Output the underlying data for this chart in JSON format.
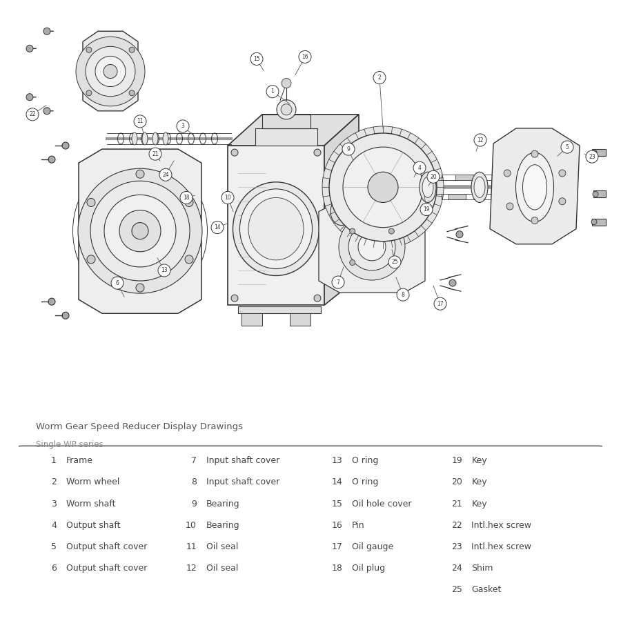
{
  "title": "Worm Gear Speed Reducer Display Drawings",
  "subtitle": "Single WP series",
  "bg_color": "#ffffff",
  "table_border_color": "#888888",
  "title_color": "#555555",
  "subtitle_color": "#888888",
  "text_color": "#444444",
  "parts": [
    {
      "num": "1",
      "name": "Frame",
      "col": 0
    },
    {
      "num": "2",
      "name": "Worm wheel",
      "col": 0
    },
    {
      "num": "3",
      "name": "Worm shaft",
      "col": 0
    },
    {
      "num": "4",
      "name": "Output shaft",
      "col": 0
    },
    {
      "num": "5",
      "name": "Output shaft cover",
      "col": 0
    },
    {
      "num": "6",
      "name": "Output shaft cover",
      "col": 0
    },
    {
      "num": "7",
      "name": "Input shaft cover",
      "col": 1
    },
    {
      "num": "8",
      "name": "Input shaft cover",
      "col": 1
    },
    {
      "num": "9",
      "name": "Bearing",
      "col": 1
    },
    {
      "num": "10",
      "name": "Bearing",
      "col": 1
    },
    {
      "num": "11",
      "name": "Oil seal",
      "col": 1
    },
    {
      "num": "12",
      "name": "Oil seal",
      "col": 1
    },
    {
      "num": "13",
      "name": "O ring",
      "col": 2
    },
    {
      "num": "14",
      "name": "O ring",
      "col": 2
    },
    {
      "num": "15",
      "name": "Oil hole cover",
      "col": 2
    },
    {
      "num": "16",
      "name": "Pin",
      "col": 2
    },
    {
      "num": "17",
      "name": "Oil gauge",
      "col": 2
    },
    {
      "num": "18",
      "name": "Oil plug",
      "col": 2
    },
    {
      "num": "19",
      "name": "Key",
      "col": 3
    },
    {
      "num": "20",
      "name": "Key",
      "col": 3
    },
    {
      "num": "21",
      "name": "Key",
      "col": 3
    },
    {
      "num": "22",
      "name": "Intl.hex screw",
      "col": 3
    },
    {
      "num": "23",
      "name": "Intl.hex screw",
      "col": 3
    },
    {
      "num": "24",
      "name": "Shim",
      "col": 3
    },
    {
      "num": "25",
      "name": "Gasket",
      "col": 3
    }
  ],
  "fig_width": 9.0,
  "fig_height": 9.0,
  "dpi": 100
}
